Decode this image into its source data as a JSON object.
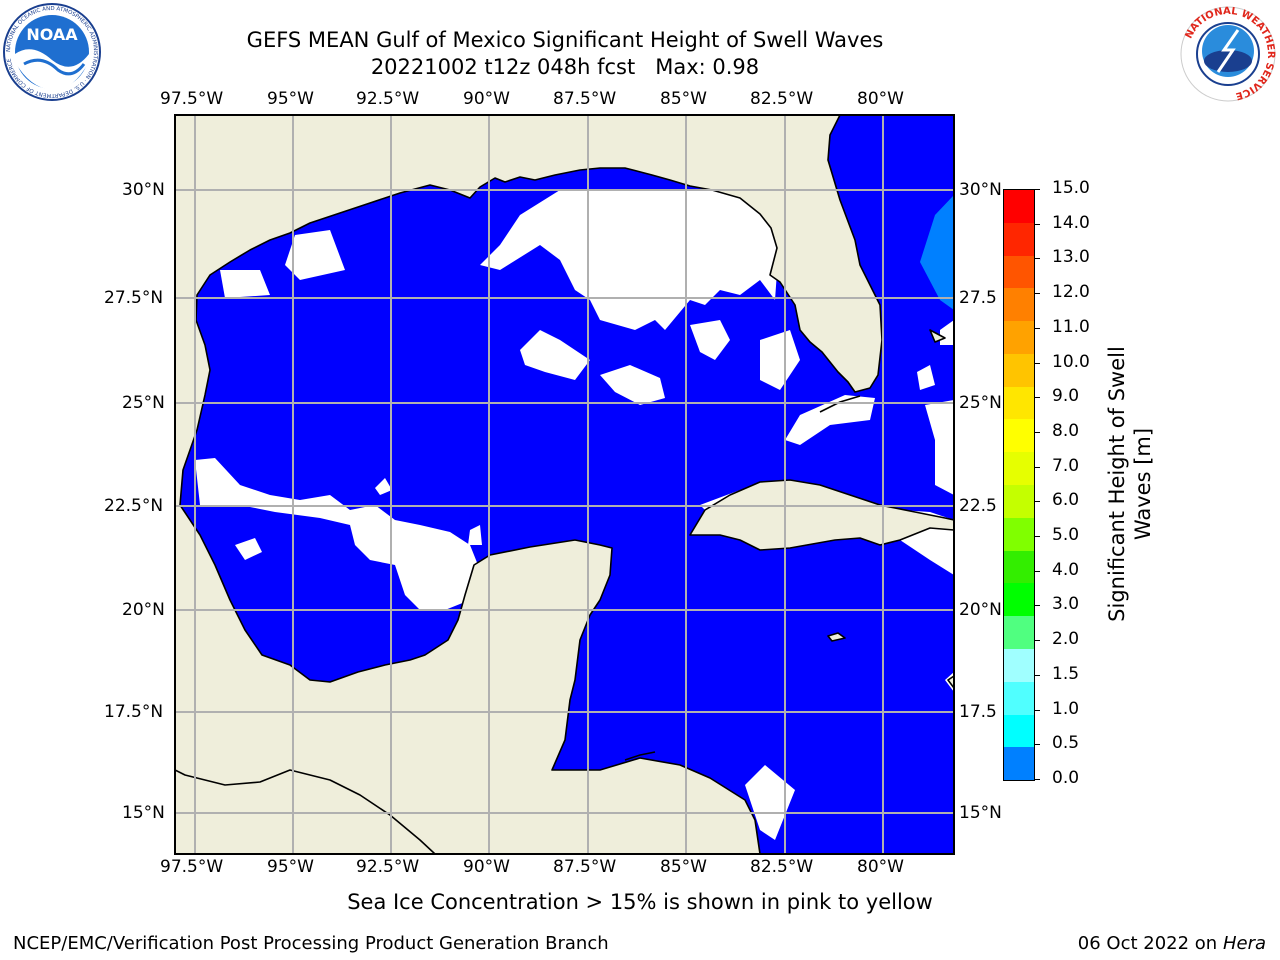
{
  "header": {
    "title_line1": "GEFS MEAN Gulf of Mexico Significant Height of Swell Waves",
    "title_line2": "20221002 t12z 048h fcst   Max: 0.98",
    "noaa_logo_text": "NOAA",
    "noaa_ring_text": "NATIONAL OCEANIC AND ATMOSPHERIC ADMINISTRATION · U.S. DEPARTMENT OF COMMERCE",
    "nws_logo_text": "NATIONAL WEATHER SERVICE"
  },
  "map": {
    "lon_labels": [
      "97.5°W",
      "95°W",
      "92.5°W",
      "90°W",
      "87.5°W",
      "85°W",
      "82.5°W",
      "80°W"
    ],
    "lat_labels": [
      "30°N",
      "27.5°N",
      "25°N",
      "22.5°N",
      "20°N",
      "17.5°N",
      "15°N"
    ],
    "lat_labels_right": [
      "30°N",
      "27.5",
      "25°N",
      "22.5",
      "20°N",
      "17.5",
      "15°N"
    ],
    "lon_range": [
      -98,
      -78
    ],
    "lat_range": [
      14,
      31.8
    ],
    "colors": {
      "land": "#efeedb",
      "ocean_low": "#0000ff",
      "ocean_mid": "#0080ff",
      "no_data": "#ffffff",
      "grid": "#b0b0b0",
      "coast": "#000000"
    }
  },
  "colorbar": {
    "label": "Significant Height of Swell Waves [m]",
    "ticks": [
      "15.0",
      "14.0",
      "13.0",
      "12.0",
      "11.0",
      "10.0",
      "9.0",
      "8.0",
      "7.0",
      "6.0",
      "5.0",
      "4.0",
      "3.0",
      "2.0",
      "1.5",
      "1.0",
      "0.5",
      "0.0"
    ],
    "colors": [
      "#ff0000",
      "#ff2600",
      "#ff5500",
      "#ff8000",
      "#ffa200",
      "#ffc400",
      "#ffe600",
      "#ffff00",
      "#e6ff00",
      "#c4ff00",
      "#80ff00",
      "#33ee00",
      "#00ff00",
      "#50ff80",
      "#a0ffff",
      "#50ffff",
      "#00ffff",
      "#0080ff",
      "#0000ff"
    ]
  },
  "footer": {
    "note": "Sea Ice Concentration > 15% is shown in pink to yellow",
    "left": "NCEP/EMC/Verification Post Processing Product Generation Branch",
    "right_prefix": "06 Oct 2022 on ",
    "right_host": "Hera"
  }
}
